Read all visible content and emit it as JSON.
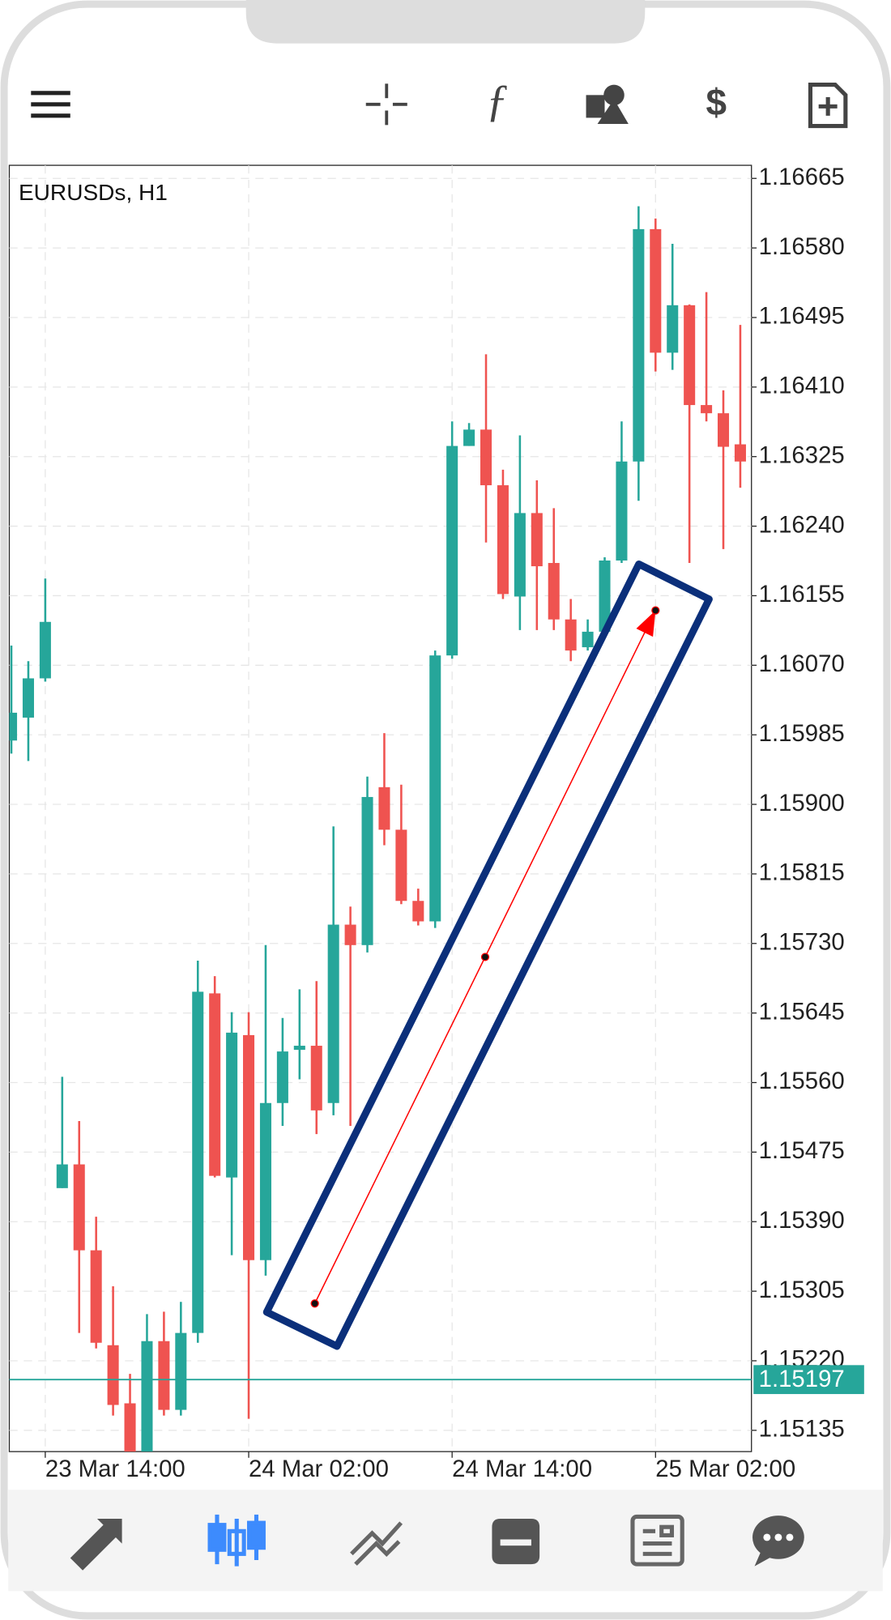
{
  "chart_data": {
    "type": "candlestick",
    "title": "EURUSDs, H1",
    "categories": [
      null,
      null,
      "23 Mar 14:00",
      null,
      null,
      null,
      null,
      null,
      null,
      null,
      null,
      null,
      null,
      null,
      "24 Mar 02:00",
      null,
      null,
      null,
      null,
      null,
      null,
      null,
      null,
      null,
      null,
      null,
      "24 Mar 14:00",
      null,
      null,
      null,
      null,
      null,
      null,
      null,
      null,
      null,
      null,
      null,
      "25 Mar 02:00",
      null,
      null,
      null,
      null,
      null
    ],
    "open": [
      1.15978,
      1.16006,
      1.16054,
      1.15431,
      1.1546,
      1.15355,
      1.15239,
      1.15168,
      1.15109,
      1.15244,
      1.1516,
      1.15254,
      1.15669,
      1.15444,
      1.15618,
      1.15343,
      1.15535,
      1.156,
      1.15605,
      1.15535,
      1.15753,
      1.15728,
      1.15921,
      1.15869,
      1.15782,
      1.15757,
      1.16082,
      1.16338,
      1.16358,
      1.1629,
      1.16154,
      1.16256,
      1.16195,
      1.16126,
      1.16092,
      1.16111,
      1.16198,
      1.16319,
      1.16603,
      1.16452,
      1.1651,
      1.16388,
      1.16378,
      1.1634
    ],
    "high": [
      1.16094,
      1.16075,
      1.16176,
      1.15567,
      1.15513,
      1.15396,
      1.15311,
      1.15204,
      1.15277,
      1.1528,
      1.15292,
      1.15709,
      1.1569,
      1.15646,
      1.15646,
      1.15728,
      1.15639,
      1.15674,
      1.15684,
      1.15873,
      1.15775,
      1.15934,
      1.15987,
      1.15924,
      1.15797,
      1.16088,
      1.16368,
      1.16366,
      1.1645,
      1.16309,
      1.16351,
      1.16296,
      1.16262,
      1.16151,
      1.16126,
      1.16202,
      1.16368,
      1.16631,
      1.16616,
      1.16585,
      1.16511,
      1.16526,
      1.16406,
      1.16486
    ],
    "low": [
      1.15962,
      1.15953,
      1.1605,
      1.15431,
      1.15254,
      1.15235,
      1.15153,
      1.15109,
      1.15109,
      1.15153,
      1.15153,
      1.15242,
      1.15444,
      1.15349,
      1.15149,
      1.15324,
      1.15507,
      1.15564,
      1.15497,
      1.1552,
      1.15507,
      1.15719,
      1.1585,
      1.15778,
      1.15752,
      1.15749,
      1.16078,
      1.16338,
      1.1622,
      1.16151,
      1.16113,
      1.16113,
      1.16113,
      1.16075,
      1.16088,
      1.16107,
      1.16195,
      1.16271,
      1.16429,
      1.16431,
      1.16195,
      1.16368,
      1.16212,
      1.16287
    ],
    "close": [
      1.16012,
      1.16054,
      1.16123,
      1.1546,
      1.15355,
      1.15242,
      1.15166,
      1.15109,
      1.15244,
      1.1516,
      1.15254,
      1.15671,
      1.15446,
      1.15621,
      1.15343,
      1.15535,
      1.15598,
      1.15605,
      1.15526,
      1.15753,
      1.15728,
      1.15909,
      1.15869,
      1.15782,
      1.15757,
      1.16082,
      1.16338,
      1.16358,
      1.1629,
      1.16157,
      1.16256,
      1.16191,
      1.16126,
      1.16088,
      1.16111,
      1.16198,
      1.16319,
      1.16603,
      1.16452,
      1.1651,
      1.16388,
      1.16378,
      1.16337,
      1.16319
    ],
    "up_color": "#26a69a",
    "down_color": "#ef5350",
    "ylim": [
      1.15109,
      1.16681
    ],
    "yticks": [
      1.16665,
      {
        "value": 1.1658,
        "label": "1.16580"
      },
      1.16495,
      {
        "value": 1.1641,
        "label": "1.16410"
      },
      1.16325,
      {
        "value": 1.1624,
        "label": "1.16240"
      },
      1.16155,
      {
        "value": 1.1607,
        "label": "1.16070"
      },
      1.15985,
      {
        "value": 1.159,
        "label": "1.15900"
      },
      1.15815,
      {
        "value": 1.1573,
        "label": "1.15730"
      },
      1.15645,
      {
        "value": 1.1556,
        "label": "1.15560"
      },
      1.15475,
      {
        "value": 1.1539,
        "label": "1.15390"
      },
      1.15305,
      {
        "value": 1.1522,
        "label": "1.15220"
      },
      1.15135
    ],
    "grid": true,
    "current_price": 1.15197,
    "current_price_color": "#26a69a",
    "trendline": {
      "x": [
        17.9,
        38.0
      ],
      "y": [
        1.1529,
        1.16137
      ],
      "color": "#ff0000"
    }
  }
}
